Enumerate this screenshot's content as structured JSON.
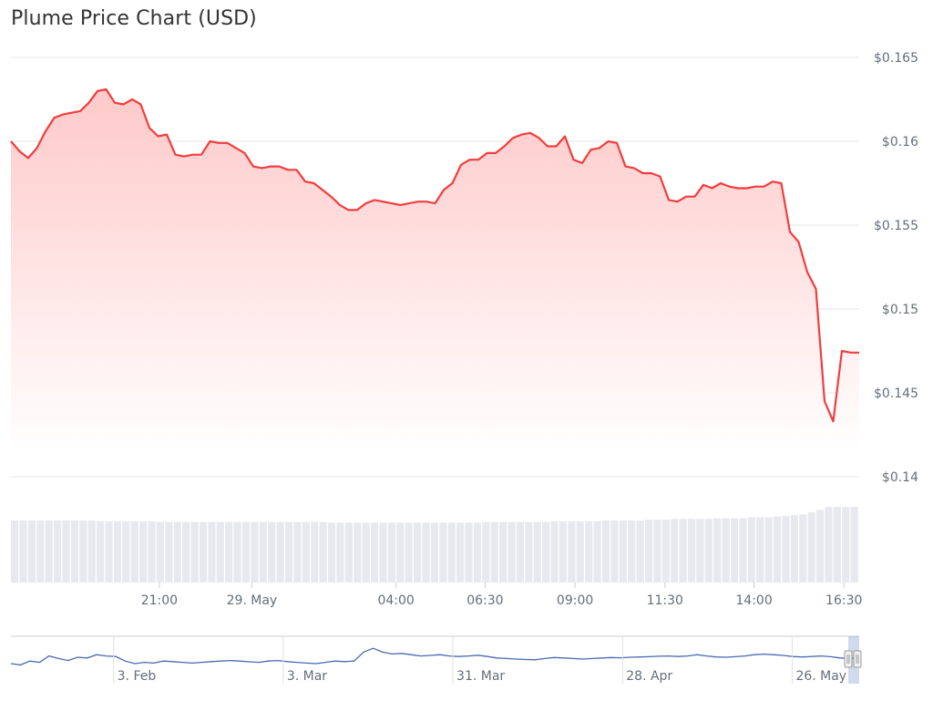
{
  "chart_data": {
    "type": "area",
    "title": "Plume Price Chart (USD)",
    "ylim": [
      0.14,
      0.165
    ],
    "y_ticks": [
      {
        "value": 0.165,
        "label": "$0.165"
      },
      {
        "value": 0.16,
        "label": "$0.16"
      },
      {
        "value": 0.155,
        "label": "$0.155"
      },
      {
        "value": 0.15,
        "label": "$0.15"
      },
      {
        "value": 0.145,
        "label": "$0.145"
      },
      {
        "value": 0.14,
        "label": "$0.14"
      }
    ],
    "x_ticks": [
      {
        "pos": 0.175,
        "label": "21:00"
      },
      {
        "pos": 0.284,
        "label": "29. May"
      },
      {
        "pos": 0.454,
        "label": "04:00"
      },
      {
        "pos": 0.559,
        "label": "06:30"
      },
      {
        "pos": 0.665,
        "label": "09:00"
      },
      {
        "pos": 0.771,
        "label": "11:30"
      },
      {
        "pos": 0.876,
        "label": "14:00"
      },
      {
        "pos": 0.982,
        "label": "16:30"
      }
    ],
    "price": [
      0.16,
      0.1594,
      0.159,
      0.1596,
      0.1606,
      0.1614,
      0.1616,
      0.1617,
      0.1618,
      0.1623,
      0.163,
      0.1631,
      0.1623,
      0.1622,
      0.1625,
      0.1622,
      0.1608,
      0.1603,
      0.1604,
      0.1592,
      0.1591,
      0.1592,
      0.1592,
      0.16,
      0.1599,
      0.1599,
      0.1596,
      0.1593,
      0.1585,
      0.1584,
      0.1585,
      0.1585,
      0.1583,
      0.1583,
      0.1576,
      0.1575,
      0.1571,
      0.1567,
      0.1562,
      0.1559,
      0.1559,
      0.1563,
      0.1565,
      0.1564,
      0.1563,
      0.1562,
      0.1563,
      0.1564,
      0.1564,
      0.1563,
      0.1571,
      0.1575,
      0.1586,
      0.1589,
      0.1589,
      0.1593,
      0.1593,
      0.1597,
      0.1602,
      0.1604,
      0.1605,
      0.1602,
      0.1597,
      0.1597,
      0.1603,
      0.1589,
      0.1587,
      0.1595,
      0.1596,
      0.16,
      0.1599,
      0.1585,
      0.1584,
      0.1581,
      0.1581,
      0.1579,
      0.1565,
      0.1564,
      0.1567,
      0.1567,
      0.1574,
      0.1572,
      0.1575,
      0.1573,
      0.1572,
      0.1572,
      0.1573,
      0.1573,
      0.1576,
      0.1575,
      0.1546,
      0.154,
      0.1522,
      0.1512,
      0.1445,
      0.1433,
      0.1475,
      0.1474,
      0.1474
    ],
    "volume": [
      0.82,
      0.82,
      0.82,
      0.82,
      0.82,
      0.82,
      0.82,
      0.82,
      0.82,
      0.82,
      0.81,
      0.81,
      0.81,
      0.81,
      0.81,
      0.81,
      0.81,
      0.8,
      0.8,
      0.8,
      0.8,
      0.8,
      0.8,
      0.8,
      0.8,
      0.8,
      0.8,
      0.8,
      0.8,
      0.8,
      0.8,
      0.8,
      0.8,
      0.8,
      0.8,
      0.8,
      0.8,
      0.79,
      0.79,
      0.79,
      0.79,
      0.79,
      0.79,
      0.79,
      0.79,
      0.79,
      0.79,
      0.79,
      0.79,
      0.79,
      0.79,
      0.79,
      0.79,
      0.79,
      0.79,
      0.8,
      0.8,
      0.8,
      0.8,
      0.8,
      0.8,
      0.8,
      0.8,
      0.81,
      0.81,
      0.81,
      0.81,
      0.81,
      0.81,
      0.82,
      0.82,
      0.82,
      0.82,
      0.82,
      0.83,
      0.83,
      0.83,
      0.84,
      0.84,
      0.84,
      0.84,
      0.84,
      0.85,
      0.85,
      0.85,
      0.85,
      0.86,
      0.86,
      0.86,
      0.87,
      0.88,
      0.89,
      0.9,
      0.93,
      0.96,
      1.0,
      1.0,
      1.0,
      1.0
    ],
    "navigator": {
      "x_ticks": [
        {
          "pos": 0.121,
          "label": "3. Feb"
        },
        {
          "pos": 0.321,
          "label": "3. Mar"
        },
        {
          "pos": 0.521,
          "label": "31. Mar"
        },
        {
          "pos": 0.721,
          "label": "28. Apr"
        },
        {
          "pos": 0.921,
          "label": "26. May"
        }
      ],
      "values": [
        0.5,
        0.45,
        0.6,
        0.55,
        0.8,
        0.7,
        0.62,
        0.75,
        0.72,
        0.85,
        0.8,
        0.78,
        0.6,
        0.5,
        0.55,
        0.52,
        0.6,
        0.58,
        0.55,
        0.52,
        0.55,
        0.58,
        0.6,
        0.62,
        0.6,
        0.57,
        0.55,
        0.6,
        0.62,
        0.58,
        0.55,
        0.52,
        0.5,
        0.55,
        0.6,
        0.58,
        0.6,
        0.95,
        1.1,
        0.95,
        0.88,
        0.9,
        0.85,
        0.8,
        0.82,
        0.85,
        0.8,
        0.78,
        0.8,
        0.83,
        0.78,
        0.72,
        0.7,
        0.68,
        0.66,
        0.65,
        0.7,
        0.74,
        0.72,
        0.7,
        0.68,
        0.7,
        0.72,
        0.74,
        0.73,
        0.75,
        0.76,
        0.77,
        0.79,
        0.8,
        0.78,
        0.8,
        0.85,
        0.8,
        0.76,
        0.75,
        0.77,
        0.8,
        0.85,
        0.87,
        0.85,
        0.82,
        0.78,
        0.76,
        0.78,
        0.8,
        0.77,
        0.72,
        0.7,
        0.72
      ]
    },
    "grid": true,
    "colors": {
      "line": "#f23d3d",
      "area_top": "#ffc9c9",
      "area_bottom": "#ffffff",
      "volume": "#e8e9ee",
      "navigator_line": "#4a6ab1",
      "grid": "#e6e6e6"
    }
  }
}
